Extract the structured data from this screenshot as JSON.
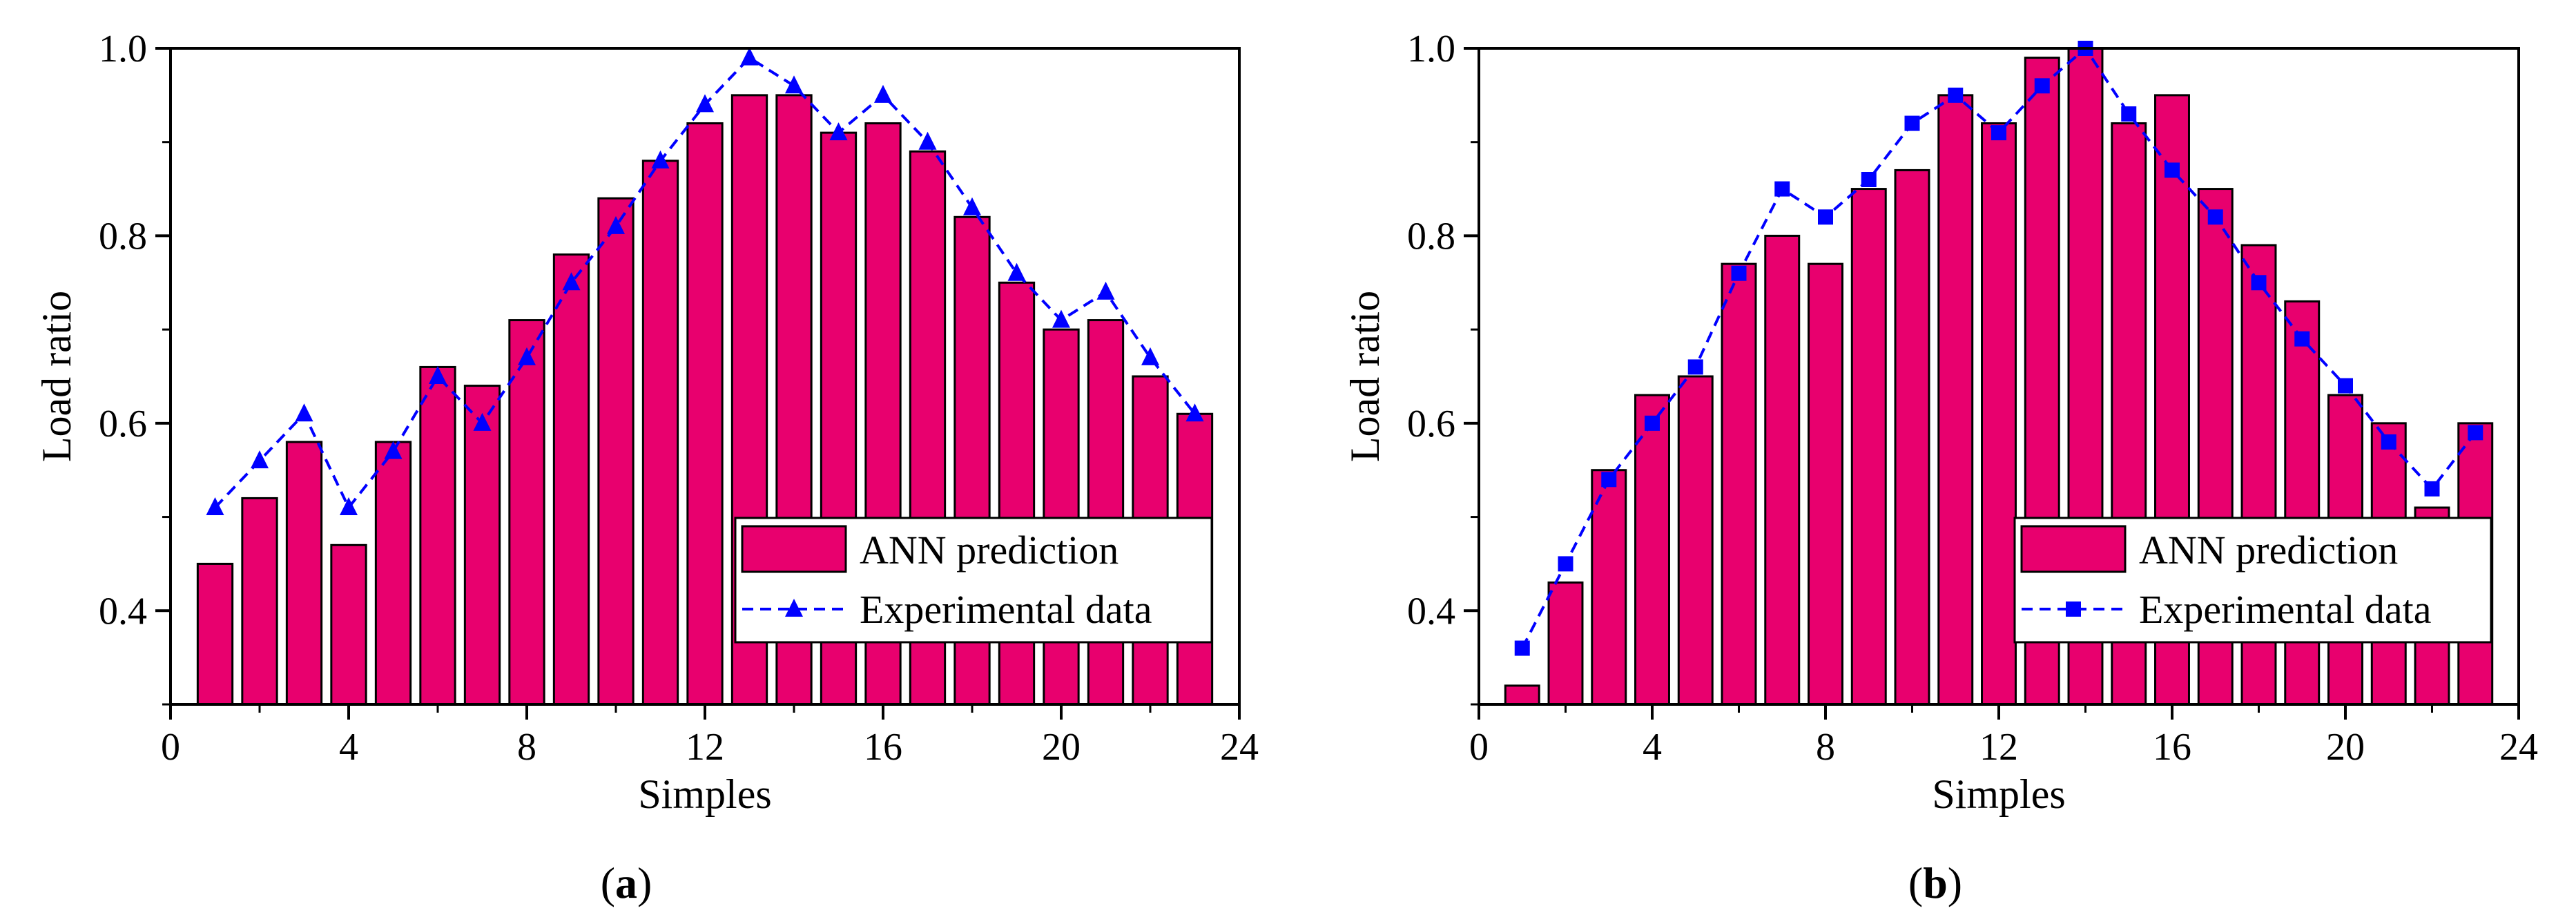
{
  "colors": {
    "bar_fill": "#E8006E",
    "bar_edge": "#000000",
    "line": "#0000FF",
    "axis": "#000000",
    "background": "#FFFFFF"
  },
  "chart_data": [
    {
      "id": "a",
      "type": "bar",
      "caption": {
        "open": "(",
        "letter": "a",
        "close": ")"
      },
      "xlabel": "Simples",
      "ylabel": "Load ratio",
      "xlim": [
        0,
        24
      ],
      "ylim": [
        0.3,
        1.0
      ],
      "xticks": [
        "0",
        "4",
        "8",
        "12",
        "16",
        "20",
        "24"
      ],
      "yticks": [
        "0.4",
        "0.6",
        "0.8",
        "1.0"
      ],
      "legend_position": "bottom-right",
      "marker": "triangle",
      "legend": {
        "bars": "ANN prediction",
        "line": "Experimental data"
      },
      "x": [
        1,
        2,
        3,
        4,
        5,
        6,
        7,
        8,
        9,
        10,
        11,
        12,
        13,
        14,
        15,
        16,
        17,
        18,
        19,
        20,
        21,
        22,
        23
      ],
      "series": [
        {
          "name": "ANN prediction",
          "type": "bar",
          "values": [
            0.45,
            0.52,
            0.58,
            0.47,
            0.58,
            0.66,
            0.64,
            0.71,
            0.78,
            0.84,
            0.88,
            0.92,
            0.95,
            0.95,
            0.91,
            0.92,
            0.89,
            0.82,
            0.75,
            0.7,
            0.71,
            0.65,
            0.61
          ]
        },
        {
          "name": "Experimental data",
          "type": "line",
          "values": [
            0.51,
            0.56,
            0.61,
            0.51,
            0.57,
            0.65,
            0.6,
            0.67,
            0.75,
            0.81,
            0.88,
            0.94,
            0.99,
            0.96,
            0.91,
            0.95,
            0.9,
            0.83,
            0.76,
            0.71,
            0.74,
            0.67,
            0.61
          ]
        }
      ]
    },
    {
      "id": "b",
      "type": "bar",
      "caption": {
        "open": "(",
        "letter": "b",
        "close": ")"
      },
      "xlabel": "Simples",
      "ylabel": "Load ratio",
      "xlim": [
        0,
        24
      ],
      "ylim": [
        0.3,
        1.0
      ],
      "xticks": [
        "0",
        "4",
        "8",
        "12",
        "16",
        "20",
        "24"
      ],
      "yticks": [
        "0.4",
        "0.6",
        "0.8",
        "1.0"
      ],
      "legend_position": "bottom-right",
      "marker": "square",
      "legend": {
        "bars": "ANN prediction",
        "line": "Experimental data"
      },
      "x": [
        1,
        2,
        3,
        4,
        5,
        6,
        7,
        8,
        9,
        10,
        11,
        12,
        13,
        14,
        15,
        16,
        17,
        18,
        19,
        20,
        21,
        22,
        23
      ],
      "series": [
        {
          "name": "ANN prediction",
          "type": "bar",
          "values": [
            0.32,
            0.43,
            0.55,
            0.63,
            0.65,
            0.77,
            0.8,
            0.77,
            0.85,
            0.87,
            0.95,
            0.92,
            0.99,
            1.0,
            0.92,
            0.95,
            0.85,
            0.79,
            0.73,
            0.63,
            0.6,
            0.51,
            0.6
          ]
        },
        {
          "name": "Experimental data",
          "type": "line",
          "values": [
            0.36,
            0.45,
            0.54,
            0.6,
            0.66,
            0.76,
            0.85,
            0.82,
            0.86,
            0.92,
            0.95,
            0.91,
            0.96,
            1.0,
            0.93,
            0.87,
            0.82,
            0.75,
            0.69,
            0.64,
            0.58,
            0.53,
            0.59
          ]
        }
      ]
    }
  ]
}
